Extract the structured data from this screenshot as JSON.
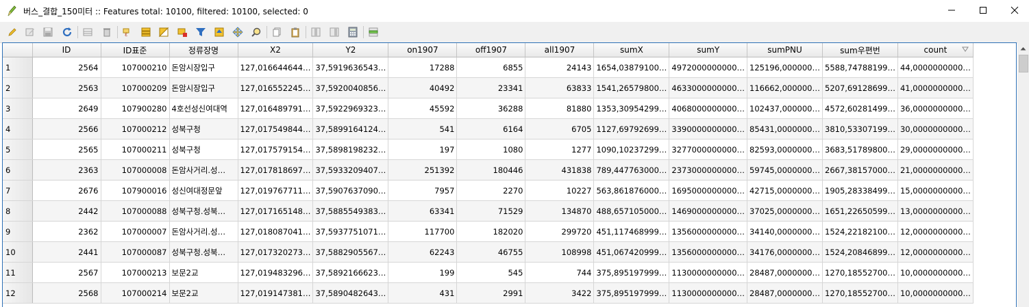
{
  "window": {
    "title": "버스_결합_150미터 :: Features total: 10100, filtered: 10100, selected: 0",
    "app_icon": "qgis-pencil-icon"
  },
  "toolbar": {
    "buttons": [
      {
        "name": "toggle-editing-button",
        "icon": "pencil-icon"
      },
      {
        "name": "toggle-multi-edit-button",
        "icon": "multi-edit-icon"
      },
      {
        "name": "save-edits-button",
        "icon": "save-icon"
      },
      {
        "name": "reload-table-button",
        "icon": "refresh-icon"
      },
      {
        "name": "add-feature-button",
        "icon": "add-row-icon"
      },
      {
        "name": "delete-features-button",
        "icon": "trash-icon"
      },
      {
        "name": "select-by-expression-button",
        "icon": "expression-icon"
      },
      {
        "name": "select-all-button",
        "icon": "select-all-icon"
      },
      {
        "name": "invert-selection-button",
        "icon": "invert-selection-icon"
      },
      {
        "name": "deselect-all-button",
        "icon": "deselect-icon"
      },
      {
        "name": "filter-select-button",
        "icon": "filter-icon"
      },
      {
        "name": "move-selection-to-top-button",
        "icon": "move-top-icon"
      },
      {
        "name": "pan-to-selected-button",
        "icon": "pan-icon"
      },
      {
        "name": "zoom-to-selected-button",
        "icon": "zoom-icon"
      },
      {
        "name": "copy-rows-button",
        "icon": "copy-icon"
      },
      {
        "name": "paste-features-button",
        "icon": "paste-icon"
      },
      {
        "name": "delete-field-button",
        "icon": "delete-field-icon"
      },
      {
        "name": "new-field-button",
        "icon": "new-field-icon"
      },
      {
        "name": "field-calculator-button",
        "icon": "calculator-icon"
      },
      {
        "name": "conditional-formatting-button",
        "icon": "conditional-format-icon"
      }
    ]
  },
  "table": {
    "columns": [
      "ID",
      "ID표준",
      "정류장명",
      "X2",
      "Y2",
      "on1907",
      "off1907",
      "all1907",
      "sumX",
      "sumY",
      "sumPNU",
      "sum우편번",
      "count"
    ],
    "rows": [
      {
        "row": "1",
        "cells": [
          "2564",
          "107000210",
          "돈암시장입구",
          "127,016644644…",
          "37,5919636543…",
          "17288",
          "6855",
          "24143",
          "1654,03879100…",
          "4972000000000…",
          "125196,000000…",
          "5588,74788199…",
          "44,0000000000…"
        ]
      },
      {
        "row": "2",
        "cells": [
          "2563",
          "107000209",
          "돈암시장입구",
          "127,016552245…",
          "37,5920040856…",
          "40492",
          "23341",
          "63833",
          "1541,26579800…",
          "4633000000000…",
          "116662,000000…",
          "5207,69128699…",
          "41,0000000000…"
        ]
      },
      {
        "row": "3",
        "cells": [
          "2649",
          "107900280",
          "4호선성신여대역",
          "127,016489791…",
          "37,5922969323…",
          "45592",
          "36288",
          "81880",
          "1353,30954299…",
          "4068000000000…",
          "102437,000000…",
          "4572,60281499…",
          "36,0000000000…"
        ]
      },
      {
        "row": "4",
        "cells": [
          "2566",
          "107000212",
          "성북구청",
          "127,017549844…",
          "37,5899164124…",
          "541",
          "6164",
          "6705",
          "1127,69792699…",
          "3390000000000…",
          "85431,0000000…",
          "3810,53307199…",
          "30,0000000000…"
        ]
      },
      {
        "row": "5",
        "cells": [
          "2565",
          "107000211",
          "성북구청",
          "127,017579154…",
          "37,5898198232…",
          "197",
          "1080",
          "1277",
          "1090,10237299…",
          "3277000000000…",
          "82593,0000000…",
          "3683,51789800…",
          "29,0000000000…"
        ]
      },
      {
        "row": "6",
        "cells": [
          "2363",
          "107000008",
          "돈암사거리.성…",
          "127,017818697…",
          "37,5933209407…",
          "251392",
          "180446",
          "431838",
          "789,447763000…",
          "2373000000000…",
          "59745,0000000…",
          "2667,38157000…",
          "21,0000000000…"
        ]
      },
      {
        "row": "7",
        "cells": [
          "2676",
          "107900016",
          "성신여대정문앞",
          "127,019767711…",
          "37,5907637090…",
          "7957",
          "2270",
          "10227",
          "563,861876000…",
          "1695000000000…",
          "42715,0000000…",
          "1905,28338499…",
          "15,0000000000…"
        ]
      },
      {
        "row": "8",
        "cells": [
          "2442",
          "107000088",
          "성북구청.성북…",
          "127,017165148…",
          "37,5885549383…",
          "63341",
          "71529",
          "134870",
          "488,657105000…",
          "1469000000000…",
          "37025,0000000…",
          "1651,22650599…",
          "13,0000000000…"
        ]
      },
      {
        "row": "9",
        "cells": [
          "2362",
          "107000007",
          "돈암사거리.성…",
          "127,018087041…",
          "37,5937751071…",
          "117700",
          "182020",
          "299720",
          "451,117468999…",
          "1356000000000…",
          "34140,0000000…",
          "1524,22182100…",
          "12,0000000000…"
        ]
      },
      {
        "row": "10",
        "cells": [
          "2441",
          "107000087",
          "성북구청.성북…",
          "127,017320273…",
          "37,5882905567…",
          "62243",
          "46755",
          "108998",
          "451,067420999…",
          "1356000000000…",
          "34176,0000000…",
          "1524,20846899…",
          "12,0000000000…"
        ]
      },
      {
        "row": "11",
        "cells": [
          "2567",
          "107000213",
          "보문2교",
          "127,019483296…",
          "37,5892166623…",
          "199",
          "545",
          "744",
          "375,895197999…",
          "1130000000000…",
          "28487,0000000…",
          "1270,18552700…",
          "10,0000000000…"
        ]
      },
      {
        "row": "12",
        "cells": [
          "2568",
          "107000214",
          "보문2교",
          "127,019147381…",
          "37,5890482643…",
          "431",
          "2991",
          "3422",
          "375,895197999…",
          "1130000000000…",
          "28487,0000000…",
          "1270,18552700…",
          "10,0000000000…"
        ]
      }
    ],
    "sort_column": "count",
    "sort_order": "descending"
  },
  "colors": {
    "accent": "#2c6fb5",
    "header_bg": "#eeeeee",
    "alt_row": "#f5f5f5"
  }
}
